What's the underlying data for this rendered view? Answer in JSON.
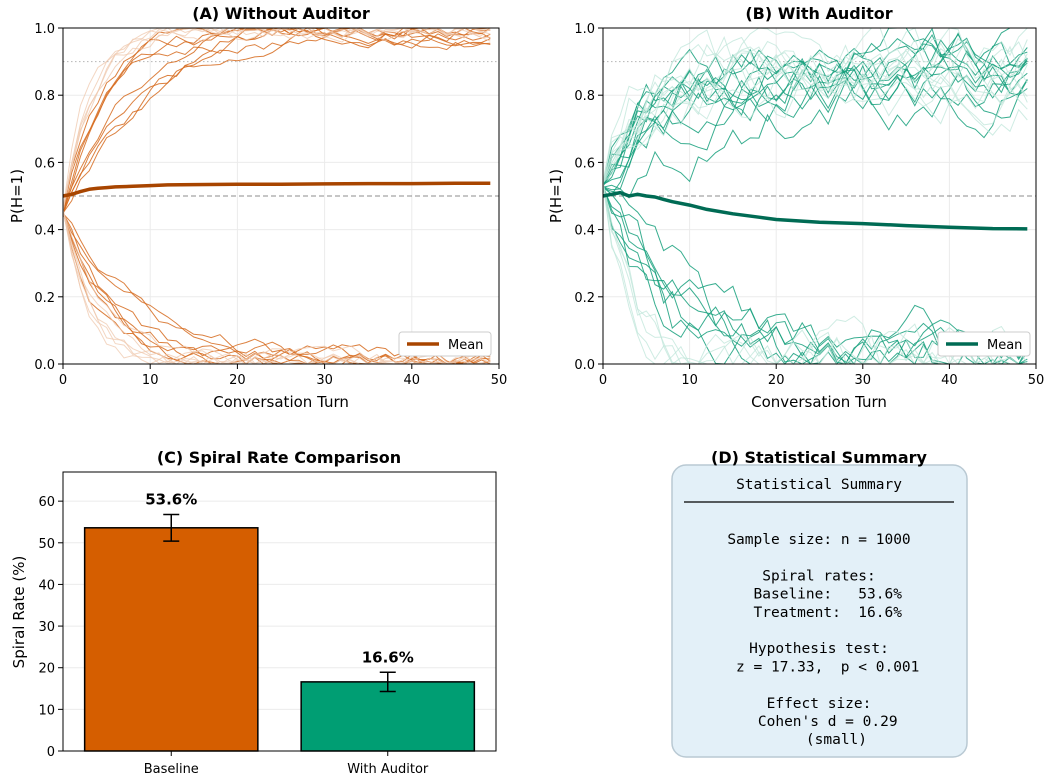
{
  "chart_data": [
    {
      "panel": "A",
      "type": "line",
      "title": "(A) Without Auditor",
      "xlabel": "Conversation Turn",
      "ylabel": "P(H=1)",
      "xlim": [
        0,
        50
      ],
      "ylim": [
        0,
        1
      ],
      "xticks": [
        0,
        10,
        20,
        30,
        40,
        50
      ],
      "yticks": [
        0.0,
        0.2,
        0.4,
        0.6,
        0.8,
        1.0
      ],
      "grid": true,
      "reference_lines": [
        0.9,
        0.5
      ],
      "legend": {
        "position": "bottom-right",
        "entries": [
          "Mean"
        ]
      },
      "colors": {
        "mean": "#a84500",
        "trajectory": "#d66b1e",
        "trajectory_faded": "#efc8ad"
      },
      "series": [
        {
          "name": "Mean",
          "x": [
            0,
            1,
            2,
            3,
            4,
            5,
            6,
            8,
            10,
            12,
            15,
            20,
            25,
            30,
            35,
            40,
            45,
            49
          ],
          "values": [
            0.5,
            0.505,
            0.513,
            0.52,
            0.523,
            0.525,
            0.527,
            0.529,
            0.531,
            0.533,
            0.534,
            0.535,
            0.535,
            0.536,
            0.537,
            0.537,
            0.538,
            0.538
          ]
        }
      ]
    },
    {
      "panel": "B",
      "type": "line",
      "title": "(B) With Auditor",
      "xlabel": "Conversation Turn",
      "ylabel": "P(H=1)",
      "xlim": [
        0,
        50
      ],
      "ylim": [
        0,
        1
      ],
      "xticks": [
        0,
        10,
        20,
        30,
        40,
        50
      ],
      "yticks": [
        0.0,
        0.2,
        0.4,
        0.6,
        0.8,
        1.0
      ],
      "grid": true,
      "reference_lines": [
        0.9,
        0.5
      ],
      "legend": {
        "position": "bottom-right",
        "entries": [
          "Mean"
        ]
      },
      "colors": {
        "mean": "#006b54",
        "trajectory": "#16a07c",
        "trajectory_faded": "#bfe6d9"
      },
      "series": [
        {
          "name": "Mean",
          "x": [
            0,
            1,
            2,
            3,
            4,
            5,
            6,
            7,
            8,
            10,
            12,
            15,
            18,
            20,
            25,
            30,
            35,
            40,
            45,
            49
          ],
          "values": [
            0.5,
            0.505,
            0.51,
            0.5,
            0.505,
            0.5,
            0.497,
            0.49,
            0.483,
            0.473,
            0.46,
            0.447,
            0.437,
            0.43,
            0.422,
            0.418,
            0.412,
            0.407,
            0.403,
            0.402
          ]
        }
      ]
    },
    {
      "panel": "C",
      "type": "bar",
      "title": "(C) Spiral Rate Comparison",
      "xlabel": "",
      "ylabel": "Spiral Rate (%)",
      "ylim": [
        0,
        67
      ],
      "yticks": [
        0,
        10,
        20,
        30,
        40,
        50,
        60
      ],
      "grid": true,
      "categories": [
        "Baseline",
        "With Auditor"
      ],
      "values": [
        53.6,
        16.6
      ],
      "error": [
        3.2,
        2.3
      ],
      "data_labels": [
        "53.6%",
        "16.6%"
      ],
      "colors": [
        "#d55e00",
        "#009e73"
      ]
    }
  ],
  "summary_panel": {
    "title": "(D) Statistical Summary",
    "box_color": "#e3f0f8",
    "heading": "Statistical Summary",
    "lines": [
      "Sample size: n = 1000",
      "",
      "Spiral rates:",
      "  Baseline:   53.6%",
      "  Treatment:  16.6%",
      "",
      "Hypothesis test:",
      "  z = 17.33,  p < 0.001",
      "",
      "Effect size:",
      "  Cohen's d = 0.29",
      "    (small)"
    ]
  }
}
